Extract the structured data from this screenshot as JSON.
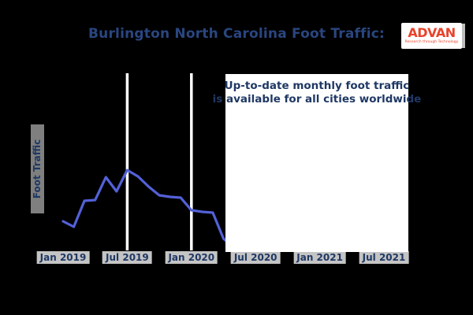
{
  "title": "Burlington North Carolina Foot Traffic:",
  "logo": {
    "brand": "ADVAN",
    "tagline": "Research through Technology"
  },
  "chart": {
    "ylabel": "Foot Traffic",
    "x_ticks": [
      "Jan 2019",
      "Jul 2019",
      "Jan 2020",
      "Jul 2020",
      "Jan 2021",
      "Jul 2021"
    ],
    "annotation": {
      "line1": "Up-to-date monthly foot traffic",
      "line2": "is available for all cities worldwide"
    }
  },
  "chart_data": {
    "type": "line",
    "title": "Burlington North Carolina Foot Traffic:",
    "xlabel": "",
    "ylabel": "Foot Traffic",
    "x": [
      "Jan 2019",
      "Feb 2019",
      "Mar 2019",
      "Apr 2019",
      "May 2019",
      "Jun 2019",
      "Jul 2019",
      "Aug 2019",
      "Sep 2019",
      "Oct 2019",
      "Nov 2019",
      "Dec 2019",
      "Jan 2020",
      "Feb 2020",
      "Mar 2020",
      "Apr 2020",
      "May 2020"
    ],
    "series": [
      {
        "name": "Foot Traffic (relative index, estimated from pixels; no y-axis ticks shown)",
        "values": [
          34,
          27,
          60,
          61,
          90,
          72,
          99,
          91,
          78,
          67,
          65,
          64,
          48,
          46,
          45,
          12,
          0
        ]
      }
    ],
    "x_tick_labels": [
      "Jan 2019",
      "Jul 2019",
      "Jan 2020",
      "Jul 2020",
      "Jan 2021",
      "Jul 2021"
    ],
    "ylim": [
      0,
      105
    ],
    "grid": "vertical white gridlines at Jul 2019 and Jan 2020",
    "legend": "none",
    "notes": "Data after Apr 2020 is hidden behind a white annotation box covering the right half of the plot"
  },
  "colors": {
    "background": "#000000",
    "navy_text": "#1f3864",
    "title_text": "#2a4680",
    "line": "#5361d8",
    "gridline": "#ffffff",
    "tick_bbox": "#c4c4c4",
    "ylabel_bbox": "#7f7f7f",
    "annotation_bg": "#ffffff",
    "logo_red": "#e8432a"
  }
}
